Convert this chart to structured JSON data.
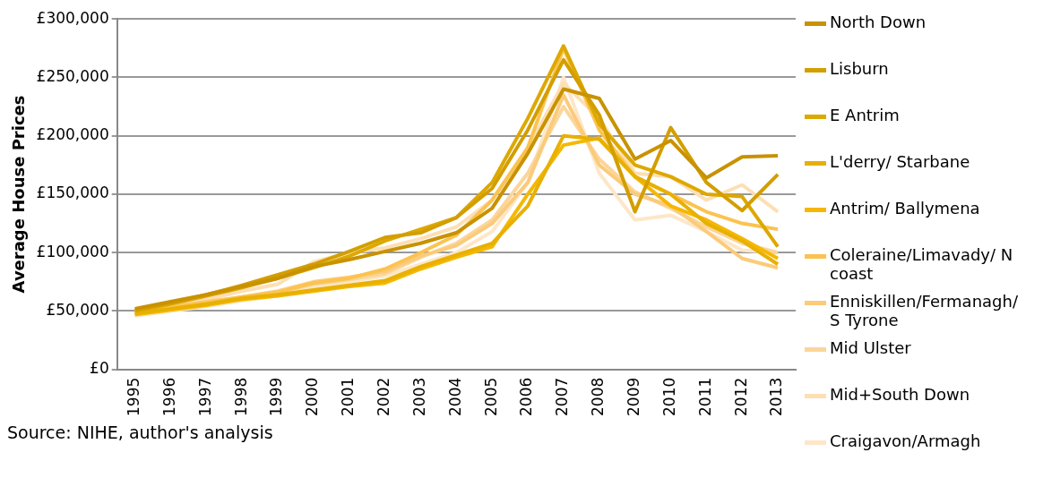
{
  "chart_data": {
    "type": "line",
    "ylabel": "Average House Prices",
    "categories": [
      "1995",
      "1996",
      "1997",
      "1998",
      "1999",
      "2000",
      "2001",
      "2002",
      "2003",
      "2004",
      "2005",
      "2006",
      "2007",
      "2008",
      "2009",
      "2010",
      "2011",
      "2012",
      "2013"
    ],
    "ylim": [
      0,
      300000
    ],
    "yticks": [
      {
        "value": 0,
        "label": "£0"
      },
      {
        "value": 50000,
        "label": "£50,000"
      },
      {
        "value": 100000,
        "label": "£100,000"
      },
      {
        "value": 150000,
        "label": "£150,000"
      },
      {
        "value": 200000,
        "label": "£200,000"
      },
      {
        "value": 250000,
        "label": "£250,000"
      },
      {
        "value": 300000,
        "label": "£300,000"
      }
    ],
    "grid": "y",
    "legend": "right",
    "marker": "none",
    "series": [
      {
        "name": "North Down",
        "color": "#c89200",
        "values": [
          52000,
          58000,
          64000,
          71000,
          78000,
          88000,
          94000,
          101000,
          108000,
          117000,
          138000,
          185000,
          240000,
          232000,
          180000,
          196000,
          164000,
          182000,
          183000
        ]
      },
      {
        "name": "Lisburn",
        "color": "#d39e00",
        "values": [
          51000,
          57000,
          64000,
          72000,
          81000,
          90000,
          101000,
          113000,
          117000,
          130000,
          155000,
          205000,
          265000,
          218000,
          135000,
          207000,
          160000,
          136000,
          167000
        ]
      },
      {
        "name": "E Antrim",
        "color": "#dda800",
        "values": [
          50000,
          56000,
          63000,
          70000,
          78000,
          87000,
          97000,
          110000,
          120000,
          130000,
          160000,
          215000,
          277000,
          210000,
          175000,
          165000,
          150000,
          148000,
          105000
        ]
      },
      {
        "name": "L'derry/ Starbane",
        "color": "#e8b000",
        "values": [
          48000,
          52000,
          56000,
          61000,
          64000,
          68000,
          72000,
          76000,
          88000,
          98000,
          108000,
          140000,
          200000,
          197000,
          165000,
          150000,
          125000,
          110000,
          90000
        ]
      },
      {
        "name": "Antrim/ Ballymena",
        "color": "#f5b800",
        "values": [
          47000,
          51000,
          55000,
          60000,
          63000,
          67000,
          71000,
          74000,
          86000,
          96000,
          105000,
          150000,
          192000,
          198000,
          165000,
          140000,
          128000,
          112000,
          95000
        ]
      },
      {
        "name": "Coleraine/Limavady/ N coast",
        "color": "#fbc34f",
        "values": [
          48000,
          53000,
          57000,
          62000,
          66000,
          74000,
          78000,
          86000,
          100000,
          115000,
          145000,
          190000,
          275000,
          205000,
          165000,
          150000,
          135000,
          125000,
          120000
        ]
      },
      {
        "name": "Enniskillen/Fermanagh/ S Tyrone",
        "color": "#fbcb7a",
        "values": [
          49000,
          54000,
          58000,
          62000,
          67000,
          75000,
          79000,
          84000,
          97000,
          106000,
          125000,
          160000,
          235000,
          175000,
          150000,
          140000,
          118000,
          95000,
          87000
        ]
      },
      {
        "name": "Mid Ulster",
        "color": "#fcd59a",
        "values": [
          47000,
          52000,
          56000,
          61000,
          66000,
          73000,
          77000,
          82000,
          96000,
          108000,
          128000,
          168000,
          225000,
          180000,
          152000,
          138000,
          122000,
          108000,
          100000
        ]
      },
      {
        "name": "Mid+South Down",
        "color": "#fddfb4",
        "values": [
          51000,
          56000,
          60000,
          67000,
          73000,
          92000,
          100000,
          104000,
          112000,
          122000,
          145000,
          190000,
          245000,
          215000,
          168000,
          165000,
          145000,
          158000,
          135000
        ]
      },
      {
        "name": "Craigavon/Armagh",
        "color": "#fde7c8",
        "values": [
          46000,
          50000,
          54000,
          59000,
          63000,
          70000,
          75000,
          80000,
          90000,
          100000,
          118000,
          160000,
          250000,
          168000,
          128000,
          132000,
          118000,
          102000,
          100000
        ]
      }
    ],
    "annotations": [
      "Source:  NIHE, author's analysis"
    ]
  }
}
